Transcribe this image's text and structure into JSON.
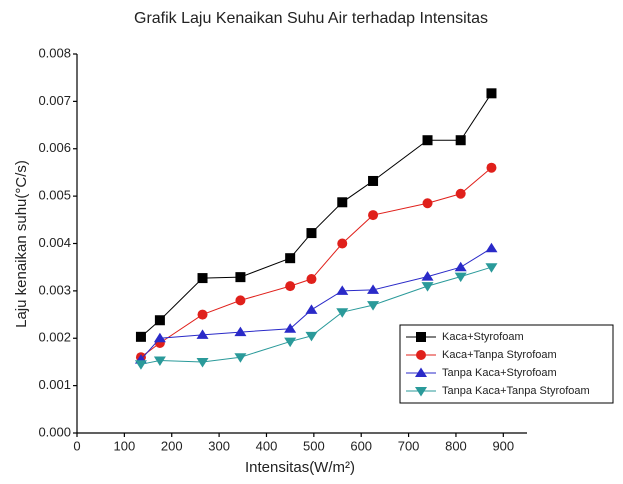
{
  "chart_data": {
    "type": "line",
    "title": "Grafik Laju Kenaikan Suhu Air terhadap Intensitas",
    "x_label": "Intensitas(W/m²)",
    "y_label": "Laju kenaikan suhu(°C/s)",
    "x": [
      135,
      175,
      265,
      345,
      450,
      495,
      560,
      625,
      740,
      810,
      875
    ],
    "series": [
      {
        "name": "Kaca+Styrofoam",
        "color": "#000000",
        "marker": "square",
        "values": [
          0.00203,
          0.00238,
          0.00327,
          0.00329,
          0.00369,
          0.00422,
          0.00487,
          0.00532,
          0.00618,
          0.00618,
          0.00717
        ]
      },
      {
        "name": "Kaca+Tanpa Styrofoam",
        "color": "#e0201b",
        "marker": "circle",
        "values": [
          0.0016,
          0.0019,
          0.0025,
          0.0028,
          0.0031,
          0.00325,
          0.004,
          0.0046,
          0.00485,
          0.00505,
          0.0056
        ]
      },
      {
        "name": "Tanpa Kaca+Styrofoam",
        "color": "#2a2ac8",
        "marker": "triangle-up",
        "values": [
          0.00155,
          0.002,
          0.00207,
          0.00213,
          0.0022,
          0.0026,
          0.003,
          0.00302,
          0.0033,
          0.0035,
          0.0039
        ]
      },
      {
        "name": "Tanpa Kaca+Tanpa Styrofoam",
        "color": "#2a9a9a",
        "marker": "triangle-down",
        "values": [
          0.00145,
          0.00153,
          0.0015,
          0.0016,
          0.00193,
          0.00205,
          0.00255,
          0.0027,
          0.0031,
          0.0033,
          0.0035
        ]
      }
    ],
    "xlim": [
      0,
      950
    ],
    "xticks": [
      0,
      100,
      200,
      300,
      400,
      500,
      600,
      700,
      800,
      900
    ],
    "ylim": [
      0,
      0.008
    ],
    "yticks": [
      {
        "value": 0,
        "label": "0.000"
      },
      {
        "value": 0.001,
        "label": "0.001"
      },
      {
        "value": 0.002,
        "label": "0.002"
      },
      {
        "value": 0.003,
        "label": "0.003"
      },
      {
        "value": 0.004,
        "label": "0.004"
      },
      {
        "value": 0.005,
        "label": "0.005"
      },
      {
        "value": 0.006,
        "label": "0.006"
      },
      {
        "value": 0.007,
        "label": "0.007"
      },
      {
        "value": 0.008,
        "label": "0.008"
      }
    ],
    "legend": "lower right"
  }
}
